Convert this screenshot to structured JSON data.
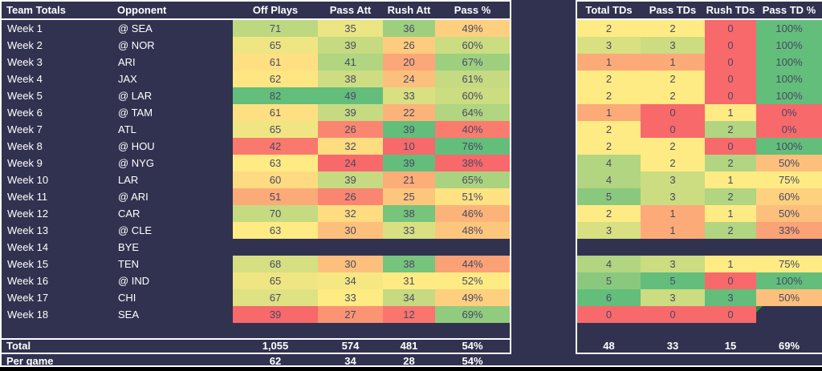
{
  "left_table": {
    "headers": [
      "Team Totals",
      "Opponent",
      "Off Plays",
      "Pass Att",
      "Rush Att",
      "Pass %"
    ],
    "total_label": "Total",
    "per_game_label": "Per game",
    "total_values": [
      "1,055",
      "574",
      "481",
      "54%"
    ],
    "per_game_values": [
      "62",
      "34",
      "28",
      "54%"
    ]
  },
  "right_table": {
    "headers": [
      "Total TDs",
      "Pass TDs",
      "Rush TDs",
      "Pass TD %"
    ],
    "total_values": [
      "48",
      "33",
      "15",
      "69%"
    ]
  },
  "columns": {
    "left": [
      {
        "key": "off_plays",
        "suffix": ""
      },
      {
        "key": "pass_att",
        "suffix": ""
      },
      {
        "key": "rush_att",
        "suffix": ""
      },
      {
        "key": "pass_pct",
        "suffix": "%"
      }
    ],
    "right": [
      {
        "key": "total_tds",
        "suffix": ""
      },
      {
        "key": "pass_tds",
        "suffix": ""
      },
      {
        "key": "rush_tds",
        "suffix": ""
      },
      {
        "key": "pass_td_pct",
        "suffix": "%"
      }
    ]
  },
  "rows": [
    {
      "week": "Week 1",
      "opponent": "@ SEA",
      "off_plays": 71,
      "pass_att": 35,
      "rush_att": 36,
      "pass_pct": 49,
      "total_tds": 2,
      "pass_tds": 2,
      "rush_tds": 0,
      "pass_td_pct": 100
    },
    {
      "week": "Week 2",
      "opponent": "@ NOR",
      "off_plays": 65,
      "pass_att": 39,
      "rush_att": 26,
      "pass_pct": 60,
      "total_tds": 3,
      "pass_tds": 3,
      "rush_tds": 0,
      "pass_td_pct": 100
    },
    {
      "week": "Week 3",
      "opponent": "ARI",
      "off_plays": 61,
      "pass_att": 41,
      "rush_att": 20,
      "pass_pct": 67,
      "total_tds": 1,
      "pass_tds": 1,
      "rush_tds": 0,
      "pass_td_pct": 100
    },
    {
      "week": "Week 4",
      "opponent": "JAX",
      "off_plays": 62,
      "pass_att": 38,
      "rush_att": 24,
      "pass_pct": 61,
      "total_tds": 2,
      "pass_tds": 2,
      "rush_tds": 0,
      "pass_td_pct": 100
    },
    {
      "week": "Week 5",
      "opponent": "@ LAR",
      "off_plays": 82,
      "pass_att": 49,
      "rush_att": 33,
      "pass_pct": 60,
      "total_tds": 2,
      "pass_tds": 2,
      "rush_tds": 0,
      "pass_td_pct": 100
    },
    {
      "week": "Week 6",
      "opponent": "@ TAM",
      "off_plays": 61,
      "pass_att": 39,
      "rush_att": 22,
      "pass_pct": 64,
      "total_tds": 1,
      "pass_tds": 0,
      "rush_tds": 1,
      "pass_td_pct": 0
    },
    {
      "week": "Week 7",
      "opponent": "ATL",
      "off_plays": 65,
      "pass_att": 26,
      "rush_att": 39,
      "pass_pct": 40,
      "total_tds": 2,
      "pass_tds": 0,
      "rush_tds": 2,
      "pass_td_pct": 0
    },
    {
      "week": "Week 8",
      "opponent": "@ HOU",
      "off_plays": 42,
      "pass_att": 32,
      "rush_att": 10,
      "pass_pct": 76,
      "total_tds": 2,
      "pass_tds": 2,
      "rush_tds": 0,
      "pass_td_pct": 100
    },
    {
      "week": "Week 9",
      "opponent": "@ NYG",
      "off_plays": 63,
      "pass_att": 24,
      "rush_att": 39,
      "pass_pct": 38,
      "total_tds": 4,
      "pass_tds": 2,
      "rush_tds": 2,
      "pass_td_pct": 50
    },
    {
      "week": "Week 10",
      "opponent": "LAR",
      "off_plays": 60,
      "pass_att": 39,
      "rush_att": 21,
      "pass_pct": 65,
      "total_tds": 4,
      "pass_tds": 3,
      "rush_tds": 1,
      "pass_td_pct": 75
    },
    {
      "week": "Week 11",
      "opponent": "@ ARI",
      "off_plays": 51,
      "pass_att": 26,
      "rush_att": 25,
      "pass_pct": 51,
      "total_tds": 5,
      "pass_tds": 3,
      "rush_tds": 2,
      "pass_td_pct": 60
    },
    {
      "week": "Week 12",
      "opponent": "CAR",
      "off_plays": 70,
      "pass_att": 32,
      "rush_att": 38,
      "pass_pct": 46,
      "total_tds": 2,
      "pass_tds": 1,
      "rush_tds": 1,
      "pass_td_pct": 50
    },
    {
      "week": "Week 13",
      "opponent": "@ CLE",
      "off_plays": 63,
      "pass_att": 30,
      "rush_att": 33,
      "pass_pct": 48,
      "total_tds": 3,
      "pass_tds": 1,
      "rush_tds": 2,
      "pass_td_pct": 33
    },
    {
      "week": "Week 14",
      "opponent": "BYE",
      "bye": true
    },
    {
      "week": "Week 15",
      "opponent": "TEN",
      "off_plays": 68,
      "pass_att": 30,
      "rush_att": 38,
      "pass_pct": 44,
      "total_tds": 4,
      "pass_tds": 3,
      "rush_tds": 1,
      "pass_td_pct": 75
    },
    {
      "week": "Week 16",
      "opponent": "@ IND",
      "off_plays": 65,
      "pass_att": 34,
      "rush_att": 31,
      "pass_pct": 52,
      "total_tds": 5,
      "pass_tds": 5,
      "rush_tds": 0,
      "pass_td_pct": 100
    },
    {
      "week": "Week 17",
      "opponent": "CHI",
      "off_plays": 67,
      "pass_att": 33,
      "rush_att": 34,
      "pass_pct": 49,
      "total_tds": 6,
      "pass_tds": 3,
      "rush_tds": 3,
      "pass_td_pct": 50
    },
    {
      "week": "Week 18",
      "opponent": "SEA",
      "off_plays": 39,
      "pass_att": 27,
      "rush_att": 12,
      "pass_pct": 69,
      "total_tds": 0,
      "pass_tds": 0,
      "rush_tds": 0,
      "pass_td_pct": null,
      "error_marker": true
    }
  ],
  "colors": {
    "background": "#313250",
    "scale_min": "#F8696B",
    "scale_mid": "#FFEB84",
    "scale_max": "#63BE7B",
    "cell_text": "#474863",
    "table_text": "#FFFFFF",
    "border": "#FFFFFF",
    "error_triangle": "#2E8B3C",
    "bottom_strip": "#000000"
  }
}
